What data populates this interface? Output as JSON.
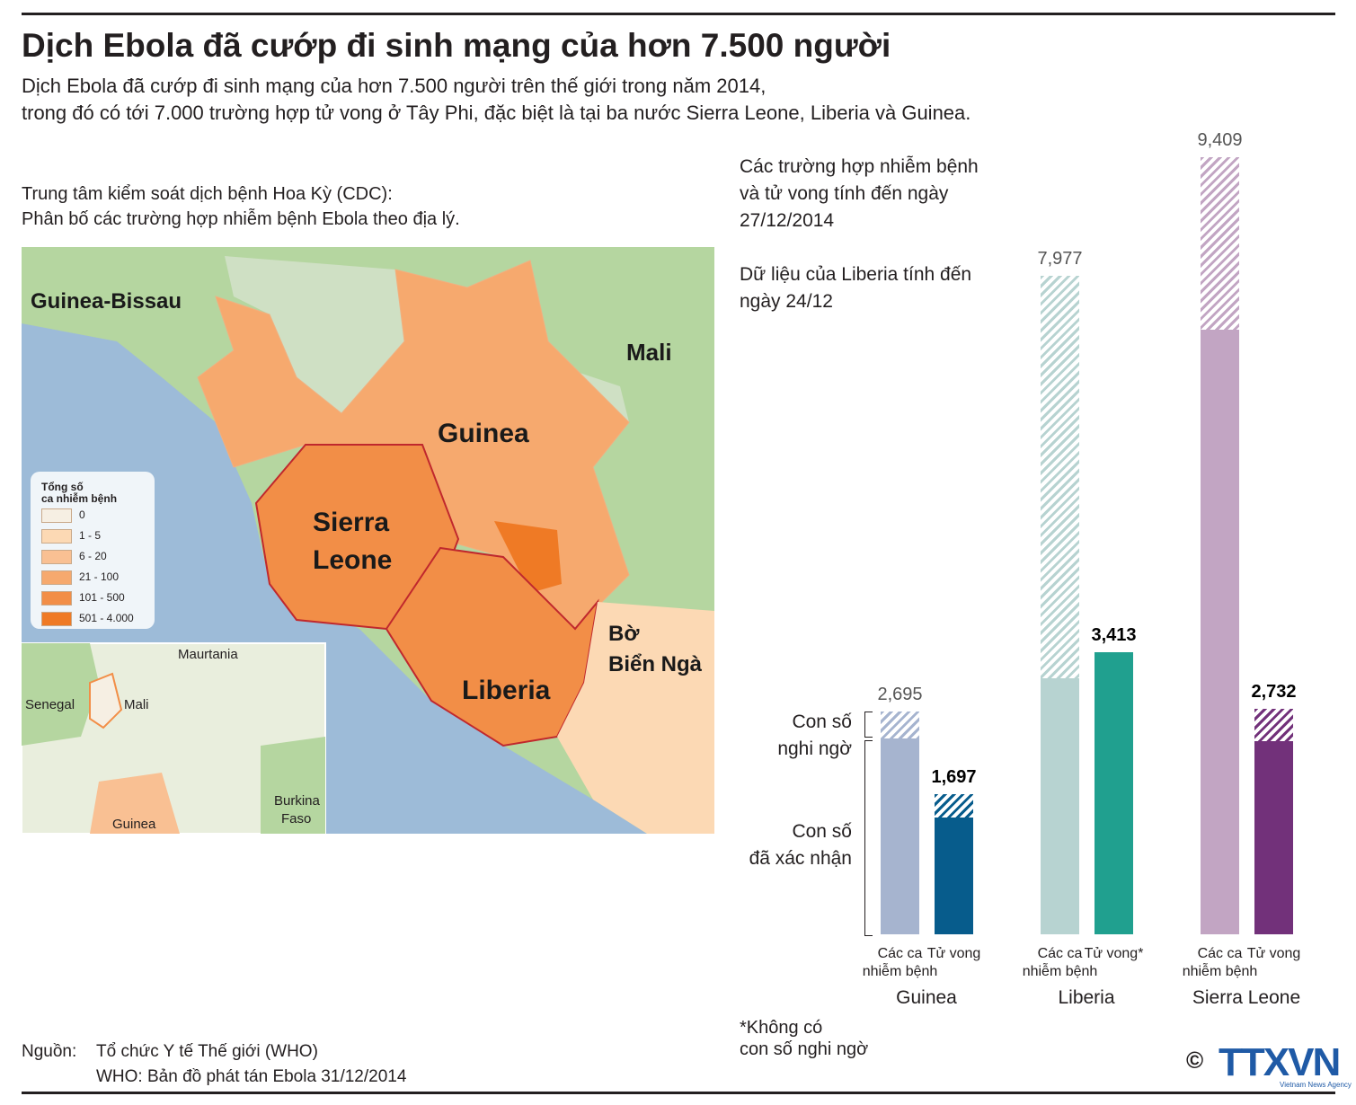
{
  "header": {
    "title": "Dịch Ebola đã cướp đi sinh mạng của hơn 7.500 người",
    "subtitle": [
      "Dịch Ebola đã cướp đi sinh mạng của hơn 7.500 người trên thế giới trong năm 2014,",
      "trong đó có tới 7.000 trường hợp tử vong ở Tây Phi, đặc biệt là tại ba nước Sierra Leone, Liberia và Guinea."
    ]
  },
  "map": {
    "title": [
      "Trung tâm kiểm soát dịch bệnh Hoa Kỳ (CDC):",
      "Phân bố các trường hợp nhiễm bệnh Ebola theo địa lý."
    ],
    "labels": [
      "Guinea-Bissau",
      "Mali",
      "Guinea",
      "Sierra",
      "Leone",
      "Liberia",
      "Bờ",
      "Biển Ngà"
    ],
    "legend_title": [
      "Tổng số",
      "ca nhiễm bệnh"
    ],
    "legend": [
      {
        "label": "0",
        "color": "#f6efe3"
      },
      {
        "label": "1 - 5",
        "color": "#fcd9b4"
      },
      {
        "label": "6 - 20",
        "color": "#f9c093"
      },
      {
        "label": "21 - 100",
        "color": "#f6a96e"
      },
      {
        "label": "101 - 500",
        "color": "#f28e47"
      },
      {
        "label": "501 - 4.000",
        "color": "#ef7a25"
      }
    ],
    "inset_labels": [
      "Maurtania",
      "Senegal",
      "Mali",
      "Burkina",
      "Faso",
      "Guinea"
    ]
  },
  "chart_data": {
    "type": "bar",
    "title": [
      "Các trường hợp nhiễm bệnh",
      "và tử vong tính đến ngày",
      "27/12/2014"
    ],
    "note": [
      "Dữ liệu của Liberia tính đến",
      "ngày 24/12"
    ],
    "legend": {
      "suspected": [
        "Con số",
        "nghi ngờ"
      ],
      "confirmed": [
        "Con số",
        "đã xác nhận"
      ]
    },
    "groups": [
      "Guinea",
      "Liberia",
      "Sierra Leone"
    ],
    "categories": [
      [
        "Các ca",
        "nhiễm bệnh"
      ],
      [
        "Tử vong"
      ],
      [
        "Các ca",
        "nhiễm bệnh"
      ],
      [
        "Tử vong*"
      ],
      [
        "Các ca",
        "nhiễm bệnh"
      ],
      [
        "Tử vong"
      ]
    ],
    "values": [
      2695,
      1697,
      7977,
      3413,
      9409,
      2732
    ],
    "value_labels": [
      "2,695",
      "1,697",
      "7,977",
      "3,413",
      "9,409",
      "2,732"
    ],
    "confirmed": [
      2370,
      1410,
      3100,
      3413,
      7320,
      2340
    ],
    "colors": [
      "#a6b4cf",
      "#075c8c",
      "#b7d3d1",
      "#20a08f",
      "#c2a5c3",
      "#72317a"
    ],
    "ylim": [
      0,
      10000
    ],
    "footnote": [
      "*Không có",
      "con số nghi ngờ"
    ]
  },
  "source": {
    "label": "Nguồn:",
    "lines": [
      "Tổ chức Y tế Thế giới (WHO)",
      "WHO: Bản đồ phát tán Ebola 31/12/2014"
    ]
  },
  "logo": {
    "symbol": "©",
    "name": "TTXVN",
    "sub": "Vietnam News Agency"
  }
}
